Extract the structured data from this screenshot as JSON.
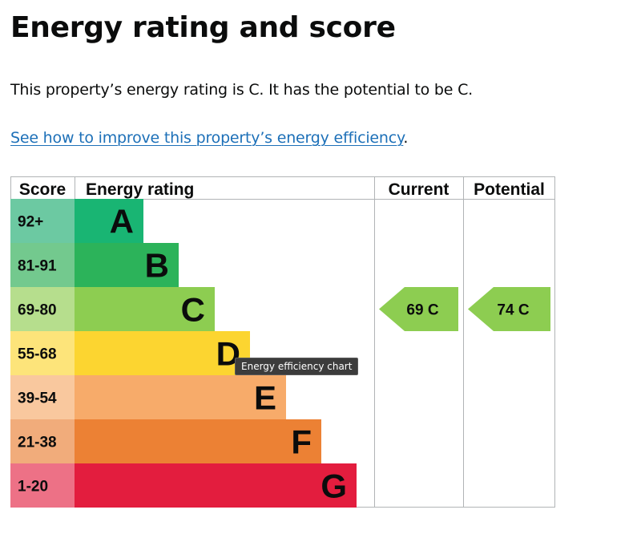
{
  "page": {
    "title": "Energy rating and score",
    "summary": "This property’s energy rating is C. It has the potential to be C.",
    "improve_link": "See how to improve this property’s energy efficiency",
    "improve_link_suffix": ".",
    "tooltip": "Energy efficiency chart"
  },
  "chart_data": {
    "type": "table",
    "headers": {
      "score": "Score",
      "rating": "Energy rating",
      "current": "Current",
      "potential": "Potential"
    },
    "bands": [
      {
        "letter": "A",
        "score": "92+",
        "color": "#19b573",
        "score_bg": "#6cc9a2"
      },
      {
        "letter": "B",
        "score": "81-91",
        "color": "#2cb35a",
        "score_bg": "#73c98e"
      },
      {
        "letter": "C",
        "score": "69-80",
        "color": "#8dcd51",
        "score_bg": "#b6de8d"
      },
      {
        "letter": "D",
        "score": "55-68",
        "color": "#fcd530",
        "score_bg": "#fde47a"
      },
      {
        "letter": "E",
        "score": "39-54",
        "color": "#f7ab6a",
        "score_bg": "#f9c89e"
      },
      {
        "letter": "F",
        "score": "21-38",
        "color": "#ec8134",
        "score_bg": "#f1ac7b"
      },
      {
        "letter": "G",
        "score": "1-20",
        "color": "#e31d3e",
        "score_bg": "#ed7186"
      }
    ],
    "current": {
      "value": 69,
      "band": "C",
      "label": "69 C",
      "color": "#8dcd51"
    },
    "potential": {
      "value": 74,
      "band": "C",
      "label": "74 C",
      "color": "#8dcd51"
    }
  }
}
